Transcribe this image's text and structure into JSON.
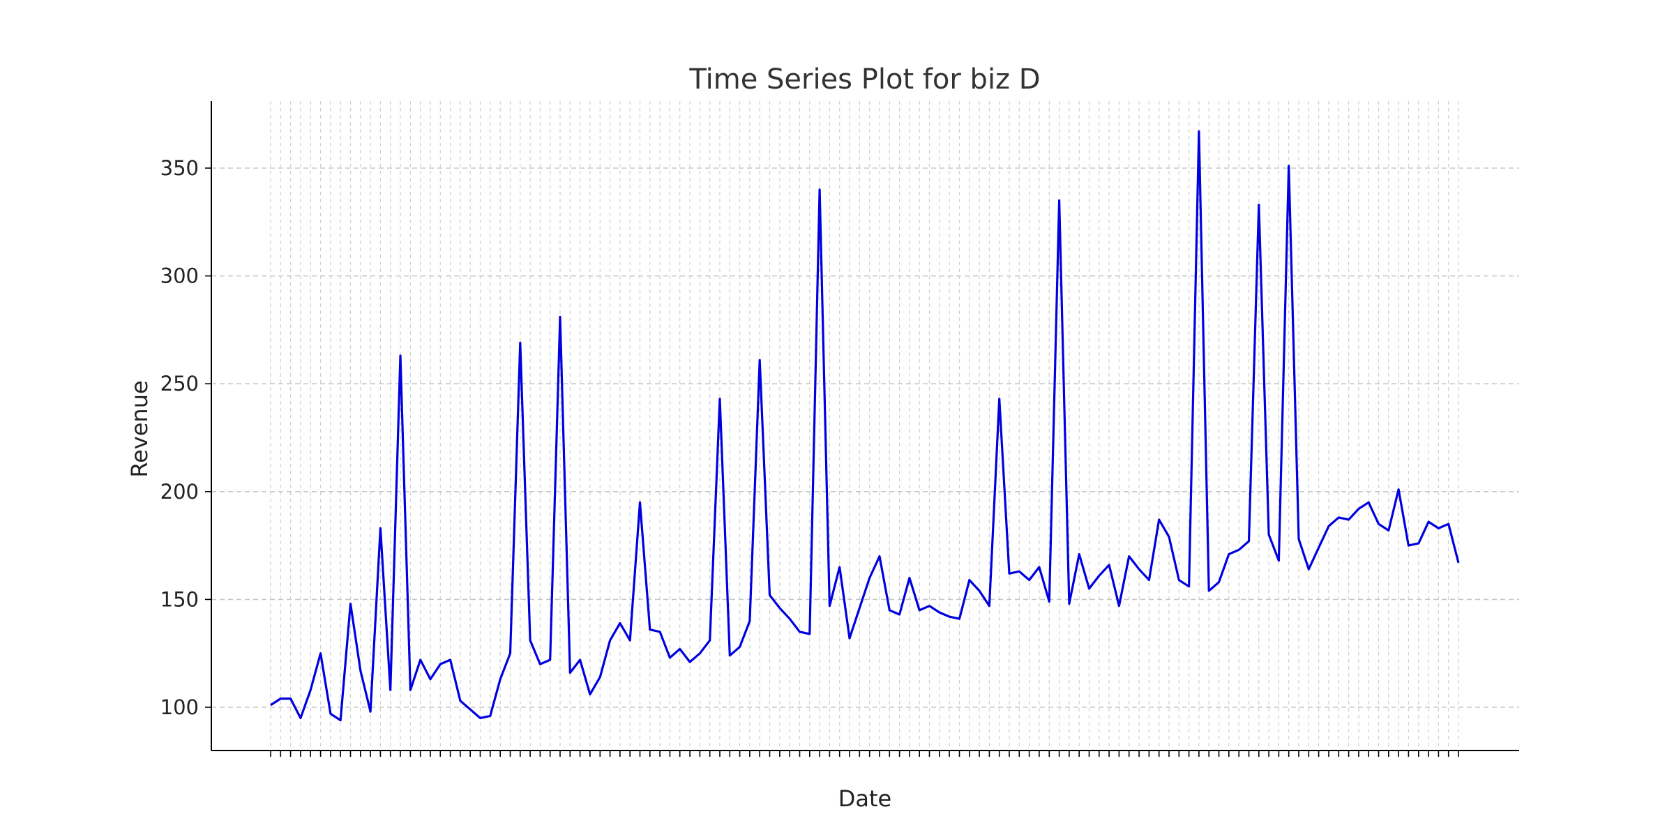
{
  "chart_data": {
    "type": "line",
    "title": "Time Series Plot for biz D",
    "xlabel": "Date",
    "ylabel": "Revenue",
    "ylim": [
      80,
      380
    ],
    "yticks": [
      100,
      150,
      200,
      250,
      300,
      350
    ],
    "grid": "on",
    "line_color": "#0000e0",
    "series": [
      {
        "values": [
          101,
          104,
          104,
          95,
          108,
          125,
          97,
          94,
          148,
          117,
          98,
          183,
          108,
          263,
          108,
          122,
          113,
          120,
          122,
          103,
          99,
          95,
          96,
          113,
          125,
          269,
          131,
          120,
          122,
          281,
          116,
          122,
          106,
          114,
          131,
          139,
          131,
          195,
          136,
          135,
          123,
          127,
          121,
          125,
          131,
          243,
          124,
          128,
          140,
          261,
          152,
          146,
          141,
          135,
          134,
          340,
          147,
          165,
          132,
          146,
          160,
          170,
          145,
          143,
          160,
          145,
          147,
          144,
          142,
          141,
          159,
          154,
          147,
          243,
          162,
          163,
          159,
          165,
          149,
          335,
          148,
          171,
          155,
          161,
          166,
          147,
          170,
          164,
          159,
          187,
          179,
          159,
          156,
          367,
          154,
          158,
          171,
          173,
          177,
          333,
          180,
          168,
          351,
          178,
          164,
          174,
          184,
          188,
          187,
          192,
          195,
          185,
          182,
          201,
          175,
          176,
          186,
          183,
          185,
          167
        ]
      }
    ]
  }
}
